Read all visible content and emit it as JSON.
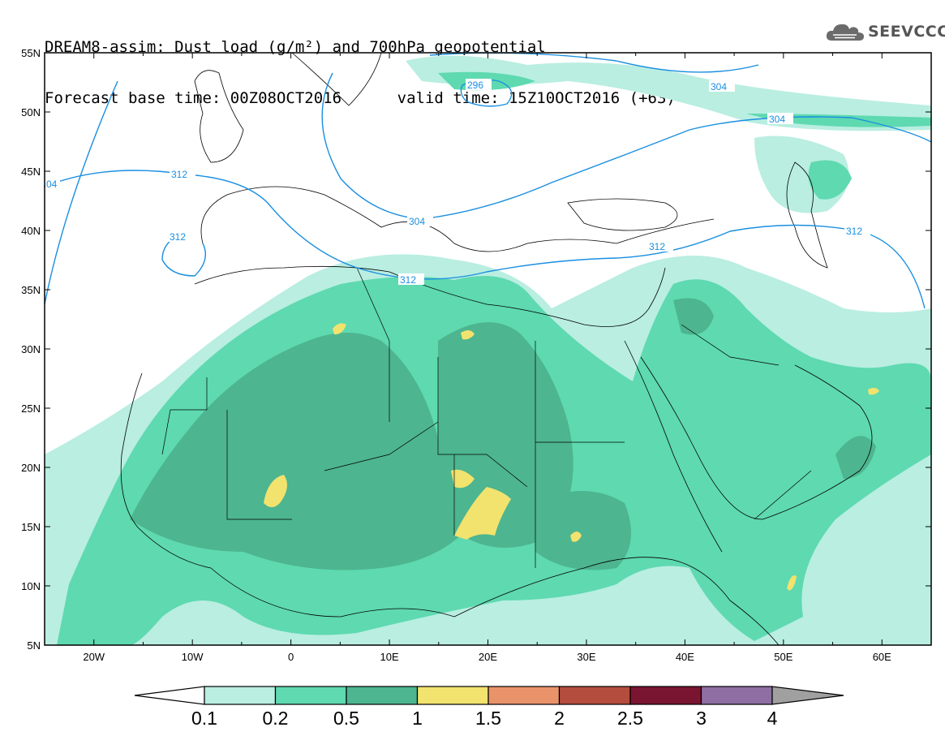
{
  "header": {
    "line1": "DREAM8-assim: Dust load (g/m²) and 700hPa geopotential",
    "line2": "Forecast base time: 00Z08OCT2016      valid time: 15Z10OCT2016 (+63)"
  },
  "logo": {
    "text": "SEEVCCC",
    "icon": "cloud-icon"
  },
  "map": {
    "lat_labels": [
      "55N",
      "50N",
      "45N",
      "40N",
      "35N",
      "30N",
      "25N",
      "20N",
      "15N",
      "10N",
      "5N"
    ],
    "lon_labels": [
      "20W",
      "10W",
      "0",
      "10E",
      "20E",
      "30E",
      "40E",
      "50E",
      "60E"
    ],
    "lat_range": [
      5,
      55
    ],
    "lon_range": [
      -25,
      65
    ]
  },
  "contours": {
    "color": "#1a8fe0",
    "labels": [
      "296",
      "304",
      "304",
      "304",
      "312",
      "312",
      "312",
      "312",
      "312",
      "04"
    ]
  },
  "colorbar": {
    "labels": [
      "0.1",
      "0.2",
      "0.5",
      "1",
      "1.5",
      "2",
      "2.5",
      "3",
      "4"
    ],
    "colors": [
      "#b9eee1",
      "#5ed9b0",
      "#4db58f",
      "#f2e26e",
      "#e9936a",
      "#b54d3e",
      "#7a1531",
      "#8e6ea3"
    ],
    "under_color": "#ffffff",
    "over_color": "#a0a0a0"
  }
}
